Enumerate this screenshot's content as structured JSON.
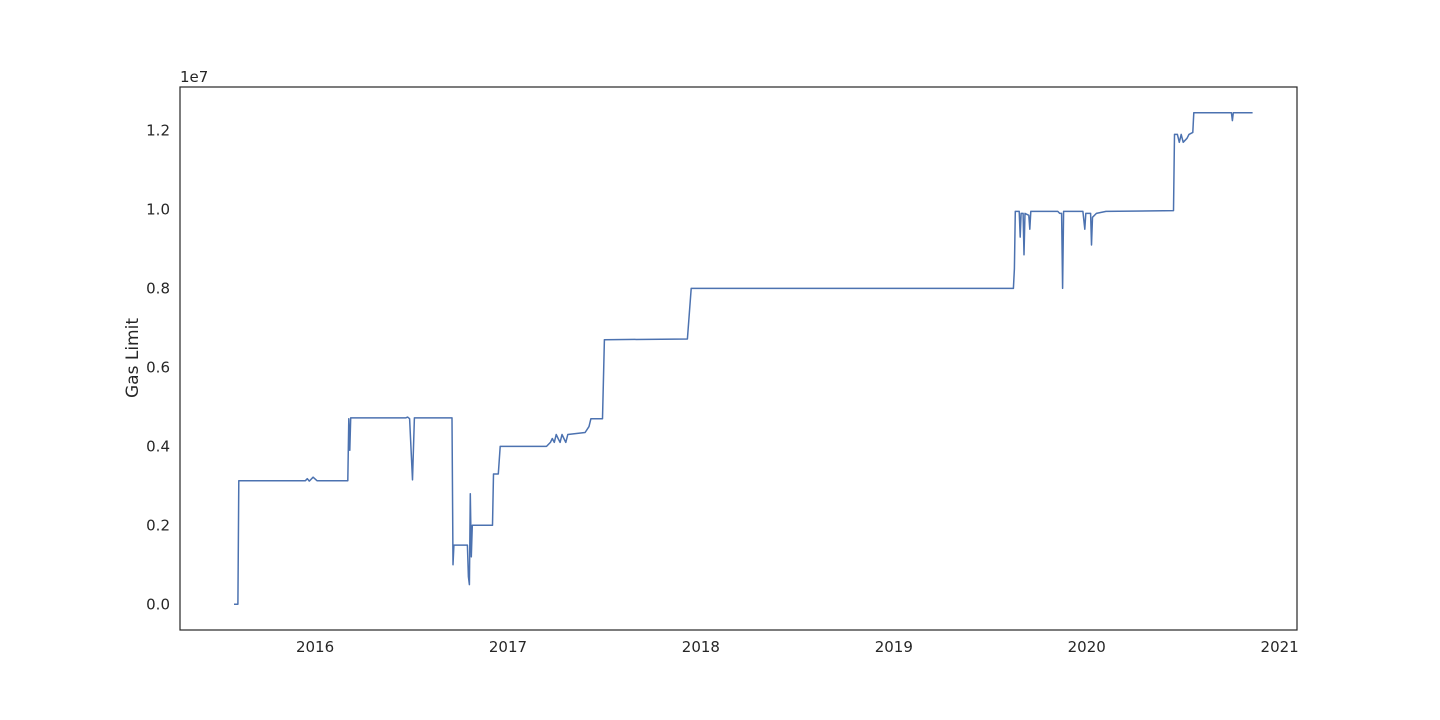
{
  "chart_data": {
    "type": "line",
    "title": "",
    "xlabel": "",
    "ylabel": "Gas Limit",
    "y_multiplier_label": "1e7",
    "y_scale_factor": 10000000,
    "xlim": [
      2015.3,
      2021.09
    ],
    "ylim": [
      -0.065,
      1.31
    ],
    "x_ticks": [
      2016,
      2017,
      2018,
      2019,
      2020,
      2021
    ],
    "x_tick_labels": [
      "2016",
      "2017",
      "2018",
      "2019",
      "2020",
      "2021"
    ],
    "y_ticks": [
      0.0,
      0.2,
      0.4,
      0.6,
      0.8,
      1.0,
      1.2
    ],
    "y_tick_labels": [
      "0.0",
      "0.2",
      "0.4",
      "0.6",
      "0.8",
      "1.0",
      "1.2"
    ],
    "grid": false,
    "color": "#4c72b0",
    "series": [
      {
        "points": [
          [
            2015.58,
            0.0
          ],
          [
            2015.6,
            0.0
          ],
          [
            2015.605,
            0.313
          ],
          [
            2015.95,
            0.313
          ],
          [
            2015.96,
            0.318
          ],
          [
            2015.97,
            0.312
          ],
          [
            2015.99,
            0.322
          ],
          [
            2016.01,
            0.313
          ],
          [
            2016.17,
            0.313
          ],
          [
            2016.175,
            0.47
          ],
          [
            2016.18,
            0.39
          ],
          [
            2016.185,
            0.472
          ],
          [
            2016.47,
            0.472
          ],
          [
            2016.48,
            0.474
          ],
          [
            2016.49,
            0.47
          ],
          [
            2016.505,
            0.315
          ],
          [
            2016.515,
            0.472
          ],
          [
            2016.71,
            0.472
          ],
          [
            2016.715,
            0.1
          ],
          [
            2016.72,
            0.15
          ],
          [
            2016.79,
            0.15
          ],
          [
            2016.795,
            0.07
          ],
          [
            2016.8,
            0.05
          ],
          [
            2016.805,
            0.28
          ],
          [
            2016.81,
            0.12
          ],
          [
            2016.815,
            0.2
          ],
          [
            2016.92,
            0.2
          ],
          [
            2016.925,
            0.33
          ],
          [
            2016.95,
            0.33
          ],
          [
            2016.96,
            0.4
          ],
          [
            2017.2,
            0.4
          ],
          [
            2017.22,
            0.41
          ],
          [
            2017.23,
            0.42
          ],
          [
            2017.24,
            0.41
          ],
          [
            2017.25,
            0.43
          ],
          [
            2017.26,
            0.42
          ],
          [
            2017.27,
            0.41
          ],
          [
            2017.28,
            0.43
          ],
          [
            2017.29,
            0.42
          ],
          [
            2017.3,
            0.41
          ],
          [
            2017.31,
            0.43
          ],
          [
            2017.4,
            0.435
          ],
          [
            2017.42,
            0.45
          ],
          [
            2017.43,
            0.47
          ],
          [
            2017.49,
            0.47
          ],
          [
            2017.5,
            0.67
          ],
          [
            2017.93,
            0.672
          ],
          [
            2017.95,
            0.8
          ],
          [
            2019.6,
            0.8
          ],
          [
            2019.62,
            0.8
          ],
          [
            2019.625,
            0.85
          ],
          [
            2019.63,
            0.995
          ],
          [
            2019.65,
            0.995
          ],
          [
            2019.655,
            0.93
          ],
          [
            2019.66,
            0.99
          ],
          [
            2019.67,
            0.99
          ],
          [
            2019.675,
            0.885
          ],
          [
            2019.68,
            0.99
          ],
          [
            2019.7,
            0.985
          ],
          [
            2019.705,
            0.95
          ],
          [
            2019.71,
            0.995
          ],
          [
            2019.85,
            0.995
          ],
          [
            2019.86,
            0.99
          ],
          [
            2019.87,
            0.99
          ],
          [
            2019.875,
            0.8
          ],
          [
            2019.88,
            0.995
          ],
          [
            2019.98,
            0.995
          ],
          [
            2019.99,
            0.95
          ],
          [
            2019.995,
            0.99
          ],
          [
            2020.02,
            0.99
          ],
          [
            2020.025,
            0.91
          ],
          [
            2020.03,
            0.98
          ],
          [
            2020.05,
            0.99
          ],
          [
            2020.1,
            0.995
          ],
          [
            2020.45,
            0.997
          ],
          [
            2020.455,
            1.19
          ],
          [
            2020.47,
            1.19
          ],
          [
            2020.48,
            1.17
          ],
          [
            2020.49,
            1.19
          ],
          [
            2020.5,
            1.17
          ],
          [
            2020.52,
            1.18
          ],
          [
            2020.53,
            1.19
          ],
          [
            2020.55,
            1.195
          ],
          [
            2020.555,
            1.245
          ],
          [
            2020.75,
            1.245
          ],
          [
            2020.755,
            1.225
          ],
          [
            2020.76,
            1.245
          ],
          [
            2020.86,
            1.245
          ]
        ]
      }
    ]
  }
}
